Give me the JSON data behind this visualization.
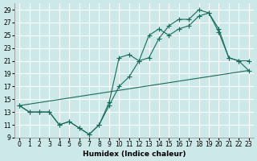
{
  "title": "",
  "xlabel": "Humidex (Indice chaleur)",
  "ylabel": "",
  "bg_color": "#cce8e8",
  "grid_color": "#ffffff",
  "line_color": "#1a6b5a",
  "xlim": [
    -0.5,
    23.5
  ],
  "ylim": [
    9,
    30
  ],
  "yticks": [
    9,
    11,
    13,
    15,
    17,
    19,
    21,
    23,
    25,
    27,
    29
  ],
  "xticks": [
    0,
    1,
    2,
    3,
    4,
    5,
    6,
    7,
    8,
    9,
    10,
    11,
    12,
    13,
    14,
    15,
    16,
    17,
    18,
    19,
    20,
    21,
    22,
    23
  ],
  "line1_x": [
    0,
    1,
    2,
    3,
    4,
    5,
    6,
    7,
    8,
    9,
    10,
    11,
    12,
    13,
    14,
    15,
    16,
    17,
    18,
    19,
    20,
    21,
    22,
    23
  ],
  "line1_y": [
    14,
    13,
    13,
    13,
    11,
    11.5,
    10.5,
    9.5,
    11,
    14,
    17,
    18.5,
    21,
    21.5,
    24.5,
    26.5,
    27.5,
    27.5,
    29,
    28.5,
    25.5,
    21.5,
    21,
    19.5
  ],
  "line2_x": [
    0,
    1,
    2,
    3,
    4,
    5,
    6,
    7,
    8,
    9,
    10,
    11,
    12,
    13,
    14,
    15,
    16,
    17,
    18,
    19,
    20,
    21,
    22,
    23
  ],
  "line2_y": [
    14,
    13,
    13,
    13,
    11,
    11.5,
    10.5,
    9.5,
    11,
    14.5,
    21.5,
    22,
    21,
    25,
    26,
    25,
    26,
    26.5,
    28,
    28.5,
    26,
    21.5,
    21,
    21
  ],
  "line3_x": [
    0,
    23
  ],
  "line3_y": [
    14,
    19.5
  ]
}
